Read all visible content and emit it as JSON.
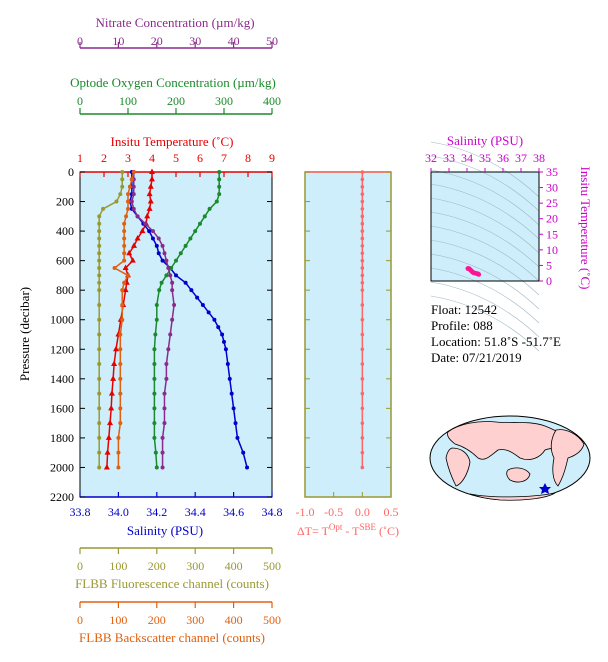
{
  "axes": {
    "nitrate": {
      "label": "Nitrate Concentration (µm/kg)",
      "ticks": [
        "0",
        "10",
        "20",
        "30",
        "40",
        "50"
      ],
      "min": 0,
      "max": 50,
      "color": "#8b2a8b"
    },
    "oxygen": {
      "label": "Optode Oxygen Concentration (µm/kg)",
      "ticks": [
        "0",
        "100",
        "200",
        "300",
        "400"
      ],
      "min": 0,
      "max": 400,
      "color": "#1a8a2a"
    },
    "temperature": {
      "label": "Insitu Temperature (˚C)",
      "ticks": [
        "1",
        "2",
        "3",
        "4",
        "5",
        "6",
        "7",
        "8",
        "9"
      ],
      "min": 1,
      "max": 9,
      "color": "#e60000"
    },
    "salinity": {
      "label": "Salinity (PSU)",
      "ticks": [
        "33.8",
        "34.0",
        "34.2",
        "34.4",
        "34.6",
        "34.8"
      ],
      "min": 33.8,
      "max": 34.8,
      "color": "#0000cc"
    },
    "pressure": {
      "label": "Pressure (decibar)",
      "ticks": [
        "0",
        "200",
        "400",
        "600",
        "800",
        "1000",
        "1200",
        "1400",
        "1600",
        "1800",
        "2000",
        "2200"
      ],
      "min": 0,
      "max": 2200
    },
    "fluorescence": {
      "label": "FLBB Fluorescence channel (counts)",
      "ticks": [
        "0",
        "100",
        "200",
        "300",
        "400",
        "500"
      ],
      "min": 0,
      "max": 500,
      "color": "#999933"
    },
    "backscatter": {
      "label": "FLBB Backscatter channel (counts)",
      "ticks": [
        "0",
        "100",
        "200",
        "300",
        "400",
        "500"
      ],
      "min": 0,
      "max": 500,
      "color": "#e06010"
    },
    "deltaT": {
      "label_prefix": "ΔT= T",
      "label_sup1": "Opt",
      "label_mid": " - T",
      "label_sup2": "SBE",
      "label_suffix": " (˚C)",
      "ticks": [
        "-1.0",
        "-0.5",
        "0.0",
        "0.5"
      ],
      "min": -1.0,
      "max": 0.5,
      "color": "#ff6666"
    },
    "ts_salinity": {
      "label": "Salinity (PSU)",
      "ticks": [
        "32",
        "33",
        "34",
        "35",
        "36",
        "37",
        "38"
      ],
      "min": 32,
      "max": 38,
      "color": "#cc00cc"
    },
    "ts_temperature": {
      "label": "Insitu Temperature (˚C)",
      "ticks": [
        "0",
        "5",
        "10",
        "15",
        "20",
        "25",
        "30",
        "35"
      ],
      "min": 0,
      "max": 35,
      "color": "#cc00cc"
    }
  },
  "info": {
    "float": "Float:  12542",
    "profile": "Profile:  088",
    "location": "Location:  51.8˚S  -51.7˚E",
    "date": "Date:  07/21/2019"
  },
  "chart_data": {
    "type": "line",
    "y_axis": "pressure",
    "ylim": [
      2200,
      0
    ],
    "series": [
      {
        "name": "Insitu Temperature",
        "axis": "temperature",
        "color": "#e60000",
        "marker": "triangle",
        "pressure": [
          0,
          50,
          100,
          150,
          200,
          250,
          300,
          350,
          400,
          450,
          500,
          550,
          600,
          650,
          700,
          750,
          800,
          900,
          1000,
          1100,
          1200,
          1300,
          1400,
          1500,
          1600,
          1700,
          1800,
          1900,
          2000
        ],
        "values": [
          4.0,
          4.0,
          3.95,
          3.9,
          3.95,
          3.9,
          3.8,
          3.75,
          3.6,
          3.4,
          3.25,
          3.05,
          3.2,
          2.9,
          3.0,
          2.95,
          2.9,
          2.8,
          2.7,
          2.6,
          2.5,
          2.42,
          2.38,
          2.33,
          2.3,
          2.25,
          2.2,
          2.15,
          2.12
        ]
      },
      {
        "name": "Salinity",
        "axis": "salinity",
        "color": "#0000cc",
        "marker": "circle",
        "pressure": [
          0,
          50,
          100,
          150,
          200,
          250,
          300,
          350,
          400,
          450,
          500,
          550,
          600,
          650,
          700,
          750,
          800,
          850,
          900,
          950,
          1000,
          1050,
          1100,
          1150,
          1200,
          1300,
          1400,
          1500,
          1600,
          1700,
          1800,
          1900,
          2000
        ],
        "values": [
          34.07,
          34.07,
          34.07,
          34.07,
          34.06,
          34.07,
          34.1,
          34.13,
          34.16,
          34.18,
          34.2,
          34.21,
          34.23,
          34.27,
          34.3,
          34.35,
          34.38,
          34.41,
          34.44,
          34.47,
          34.5,
          34.52,
          34.54,
          34.55,
          34.56,
          34.57,
          34.58,
          34.59,
          34.6,
          34.61,
          34.62,
          34.65,
          34.67
        ]
      },
      {
        "name": "Optode Oxygen",
        "axis": "oxygen",
        "color": "#1a8a2a",
        "marker": "circle",
        "pressure": [
          0,
          50,
          100,
          150,
          200,
          250,
          300,
          350,
          400,
          450,
          500,
          550,
          600,
          650,
          700,
          750,
          800,
          900,
          1000,
          1100,
          1200,
          1300,
          1400,
          1500,
          1600,
          1700,
          1800,
          1900,
          2000
        ],
        "values": [
          290,
          290,
          290,
          290,
          285,
          270,
          260,
          250,
          240,
          230,
          220,
          210,
          200,
          190,
          180,
          170,
          165,
          160,
          160,
          157,
          155,
          155,
          155,
          155,
          155,
          155,
          155,
          158,
          160
        ]
      },
      {
        "name": "Nitrate",
        "axis": "nitrate",
        "color": "#8b2a8b",
        "marker": "circle",
        "pressure": [
          0,
          50,
          100,
          150,
          200,
          250,
          300,
          350,
          400,
          450,
          500,
          550,
          600,
          650,
          700,
          750,
          800,
          900,
          1000,
          1100,
          1200,
          1300,
          1400,
          1500,
          1600,
          1700,
          1800,
          1900,
          2000
        ],
        "values": [
          14,
          14,
          14,
          14,
          13.5,
          14,
          15,
          17,
          19,
          20.5,
          21.5,
          22,
          22.5,
          23,
          23.5,
          24,
          24,
          24.5,
          24,
          23.5,
          23,
          22.5,
          22.5,
          22,
          22,
          22,
          21.5,
          21.5,
          21.5
        ]
      },
      {
        "name": "FLBB Fluorescence",
        "axis": "fluorescence",
        "color": "#999933",
        "marker": "circle",
        "pressure": [
          0,
          50,
          100,
          150,
          200,
          250,
          300,
          350,
          400,
          450,
          500,
          550,
          600,
          650,
          700,
          750,
          800,
          900,
          1000,
          1100,
          1200,
          1300,
          1400,
          1500,
          1600,
          1700,
          1800,
          1900,
          2000
        ],
        "values": [
          110,
          110,
          110,
          105,
          95,
          60,
          50,
          50,
          50,
          50,
          50,
          50,
          50,
          50,
          50,
          50,
          50,
          50,
          50,
          50,
          50,
          50,
          50,
          50,
          50,
          50,
          50,
          50,
          50
        ]
      },
      {
        "name": "FLBB Backscatter",
        "axis": "backscatter",
        "color": "#e06010",
        "marker": "circle",
        "pressure": [
          0,
          50,
          100,
          150,
          200,
          250,
          300,
          350,
          400,
          450,
          500,
          550,
          600,
          650,
          700,
          750,
          800,
          900,
          1000,
          1100,
          1200,
          1300,
          1400,
          1500,
          1600,
          1700,
          1800,
          1900,
          2000
        ],
        "values": [
          140,
          135,
          130,
          125,
          125,
          125,
          120,
          115,
          115,
          115,
          115,
          115,
          115,
          90,
          125,
          115,
          110,
          110,
          110,
          105,
          105,
          105,
          105,
          105,
          105,
          105,
          100,
          100,
          100
        ]
      },
      {
        "name": "Delta T",
        "axis": "deltaT",
        "color": "#ff6666",
        "marker": "circle",
        "pressure": [
          0,
          50,
          100,
          150,
          200,
          250,
          300,
          350,
          400,
          450,
          500,
          550,
          600,
          650,
          700,
          750,
          800,
          900,
          1000,
          1100,
          1200,
          1300,
          1400,
          1500,
          1600,
          1700,
          1800,
          1900,
          2000
        ],
        "values": [
          0.0,
          0.0,
          0.0,
          0.0,
          0.0,
          0.0,
          0.0,
          0.0,
          0.0,
          0.0,
          0.0,
          0.0,
          0.0,
          0.0,
          0.0,
          0.0,
          0.0,
          0.0,
          0.0,
          0.0,
          0.0,
          0.0,
          0.0,
          0.0,
          0.0,
          0.0,
          0.0,
          0.0,
          0.0
        ]
      }
    ],
    "ts_diagram": {
      "type": "scatter",
      "xlim": [
        32,
        38
      ],
      "ylim": [
        0,
        35
      ],
      "salinity": [
        34.05,
        34.1,
        34.15,
        34.2,
        34.25,
        34.3,
        34.35,
        34.4,
        34.5,
        34.6,
        34.65
      ],
      "temperature": [
        4.0,
        4.0,
        3.8,
        3.5,
        3.2,
        2.9,
        2.7,
        2.6,
        2.45,
        2.3,
        2.12
      ]
    }
  }
}
